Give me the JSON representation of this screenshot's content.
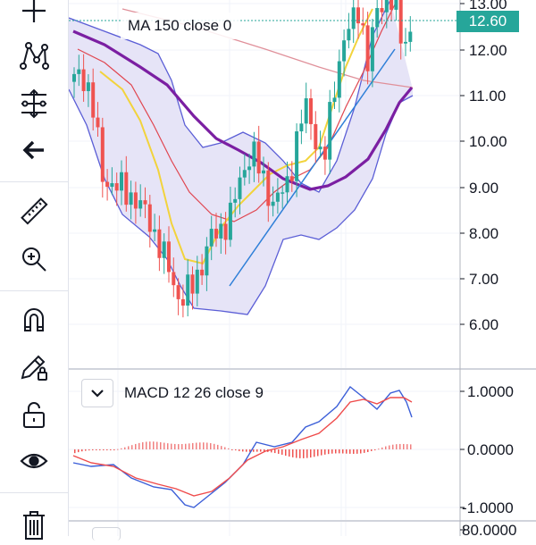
{
  "toolbar": {
    "items": [
      {
        "name": "crosshair-tool",
        "icon": "crosshair-icon"
      },
      {
        "name": "pattern-tool",
        "icon": "pattern-icon"
      },
      {
        "name": "forecast-tool",
        "icon": "forecast-icon"
      },
      {
        "name": "back-tool",
        "icon": "arrow-left-icon"
      },
      {
        "name": "ruler-tool",
        "icon": "ruler-icon"
      },
      {
        "name": "zoom-tool",
        "icon": "zoom-in-icon"
      },
      {
        "name": "magnet-tool",
        "icon": "magnet-icon"
      },
      {
        "name": "lock-drawing-tool",
        "icon": "pencil-lock-icon"
      },
      {
        "name": "unlock-tool",
        "icon": "unlock-icon"
      },
      {
        "name": "visibility-tool",
        "icon": "eye-icon"
      },
      {
        "name": "delete-tool",
        "icon": "trash-icon"
      }
    ]
  },
  "price_pane": {
    "legend": "MA 150 close 0",
    "current_price": "12.60",
    "axis_labels": [
      "13.00",
      "12.00",
      "11.00",
      "10.00",
      "9.00",
      "8.00",
      "7.00",
      "6.00"
    ]
  },
  "macd_pane": {
    "legend": "MACD 12 26 close 9",
    "axis_labels": [
      "1.0000",
      "0.0000",
      "-1.0000"
    ]
  },
  "bottom_pane": {
    "axis_label": "80.0000"
  },
  "colors": {
    "up": "#26a69a",
    "down": "#ef5350",
    "ma_purple": "#7b1fa2",
    "ma_yellow": "#f2d33c",
    "ma_red": "#e0454f",
    "band_blue": "#5b5ed6",
    "band_fill": "#e6e4f7",
    "trend_blue": "#2e7fd8",
    "price_tag": "#26a69a"
  }
}
